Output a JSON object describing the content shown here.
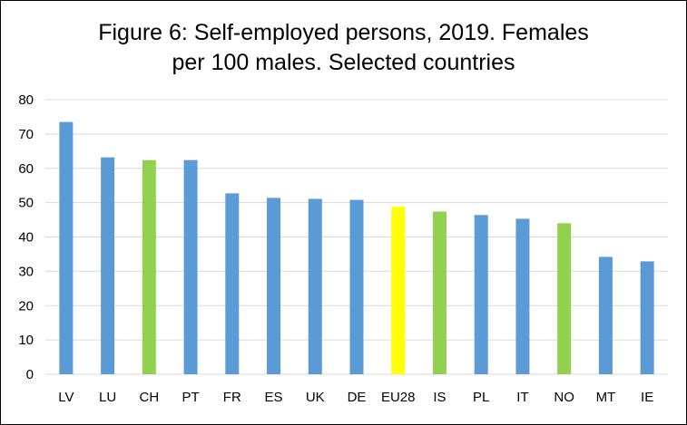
{
  "chart_data": {
    "type": "bar",
    "title_line1": "Figure 6: Self-employed persons, 2019. Females",
    "title_line2": "per 100 males. Selected countries",
    "xlabel": "",
    "ylabel": "",
    "ylim": [
      0,
      80
    ],
    "yticks": [
      "0",
      "10",
      "20",
      "30",
      "40",
      "50",
      "60",
      "70",
      "80"
    ],
    "grid": true,
    "categories": [
      "LV",
      "LU",
      "CH",
      "PT",
      "FR",
      "ES",
      "UK",
      "DE",
      "EU28",
      "IS",
      "PL",
      "IT",
      "NO",
      "MT",
      "IE"
    ],
    "values": [
      73.5,
      63.2,
      62.4,
      62.4,
      52.7,
      51.4,
      51.1,
      50.8,
      48.8,
      47.4,
      46.4,
      45.3,
      44.0,
      34.2,
      32.9
    ],
    "colors": [
      "#5B9BD5",
      "#5B9BD5",
      "#92D050",
      "#5B9BD5",
      "#5B9BD5",
      "#5B9BD5",
      "#5B9BD5",
      "#5B9BD5",
      "#FFFF00",
      "#92D050",
      "#5B9BD5",
      "#5B9BD5",
      "#92D050",
      "#5B9BD5",
      "#5B9BD5"
    ],
    "gridline_color": "#D9D9D9",
    "axis_color": "#D9D9D9"
  }
}
